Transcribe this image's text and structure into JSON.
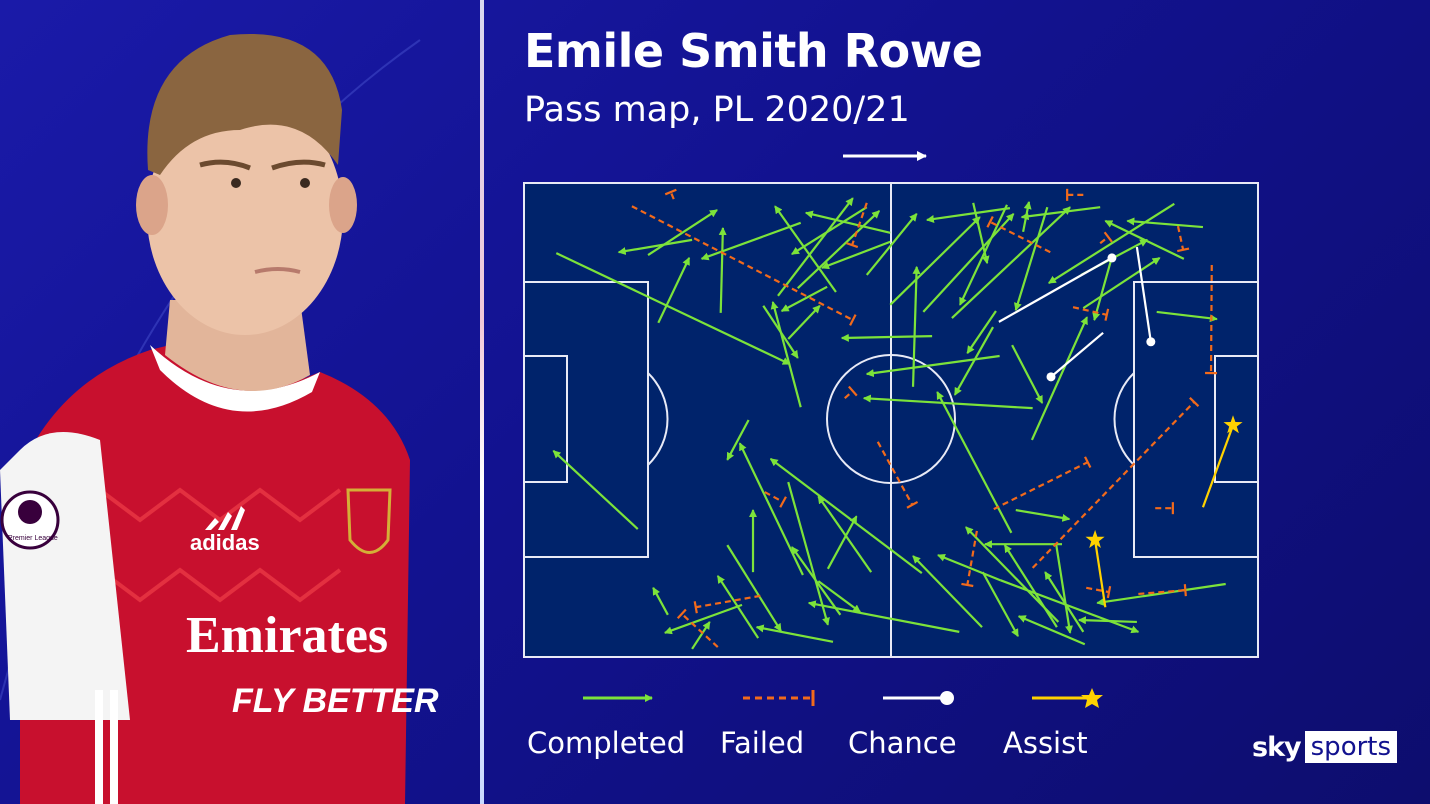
{
  "header": {
    "title": "Emile Smith Rowe",
    "subtitle": "Pass map, PL 2020/21"
  },
  "player_image": {
    "shirt_sponsor": "Emirates FLY BETTER",
    "kit_brand": "adidas",
    "badge": "Premier League",
    "club_crest": "Arsenal"
  },
  "branding": {
    "sky": "sky",
    "sports": "sports"
  },
  "colors": {
    "background": "#14149a",
    "pitch": "#00236b",
    "completed": "#7ce33a",
    "failed": "#f26a1b",
    "chance": "#ffffff",
    "assist": "#ffd200"
  },
  "legend": [
    {
      "key": "completed",
      "label": "Completed",
      "icon": "arrow-icon"
    },
    {
      "key": "failed",
      "label": "Failed",
      "icon": "dashed-blocked-line-icon"
    },
    {
      "key": "chance",
      "label": "Chance",
      "icon": "line-dot-icon"
    },
    {
      "key": "assist",
      "label": "Assist",
      "icon": "line-star-icon"
    }
  ],
  "chart_data": {
    "type": "pass-map",
    "title": "Emile Smith Rowe",
    "subtitle": "Pass map, PL 2020/21",
    "attacking_direction": "left-to-right",
    "xlim": [
      0,
      100
    ],
    "ylim": [
      0,
      100
    ],
    "grid": false,
    "legend_placement": "bottom",
    "passes": {
      "completed": [
        [
          4.4,
          14.8,
          36.2,
          38.2
        ],
        [
          18.3,
          29.5,
          22.5,
          15.8
        ],
        [
          26.8,
          27.4,
          27.1,
          9.5
        ],
        [
          22.9,
          12.0,
          12.9,
          14.6
        ],
        [
          16.9,
          15.2,
          26.3,
          5.7
        ],
        [
          37.7,
          8.4,
          24.2,
          16.0
        ],
        [
          42.5,
          23.0,
          34.2,
          4.9
        ],
        [
          34.6,
          23.8,
          44.8,
          3.2
        ],
        [
          37.3,
          22.2,
          48.4,
          5.9
        ],
        [
          49.9,
          10.5,
          38.4,
          6.3
        ],
        [
          46.7,
          5.1,
          36.5,
          15.0
        ],
        [
          49.9,
          12.4,
          40.6,
          17.9
        ],
        [
          41.3,
          21.9,
          35.1,
          27.0
        ],
        [
          32.6,
          25.9,
          37.3,
          36.9
        ],
        [
          37.7,
          47.3,
          33.9,
          25.1
        ],
        [
          36.0,
          32.9,
          40.3,
          25.9
        ],
        [
          55.6,
          32.3,
          43.3,
          32.7
        ],
        [
          64.8,
          36.5,
          46.7,
          40.3
        ],
        [
          69.3,
          47.5,
          46.3,
          45.4
        ],
        [
          53.0,
          43.0,
          53.5,
          17.7
        ],
        [
          46.7,
          19.4,
          53.5,
          6.5
        ],
        [
          49.9,
          25.7,
          62.1,
          7.2
        ],
        [
          54.4,
          27.2,
          66.7,
          6.5
        ],
        [
          58.3,
          28.5,
          74.4,
          5.1
        ],
        [
          66.2,
          5.3,
          54.9,
          7.8
        ],
        [
          61.2,
          4.2,
          63.1,
          16.9
        ],
        [
          65.8,
          4.6,
          59.4,
          25.7
        ],
        [
          71.3,
          5.1,
          67.0,
          26.8
        ],
        [
          78.5,
          5.1,
          67.8,
          7.2
        ],
        [
          68.0,
          10.3,
          68.8,
          4.0
        ],
        [
          92.5,
          9.3,
          82.2,
          8.0
        ],
        [
          88.6,
          4.4,
          71.5,
          21.1
        ],
        [
          89.9,
          16.0,
          79.2,
          8.0
        ],
        [
          75.9,
          19.4,
          84.9,
          12.0
        ],
        [
          76.2,
          26.4,
          86.6,
          15.8
        ],
        [
          80.1,
          15.6,
          77.7,
          28.9
        ],
        [
          86.2,
          27.2,
          94.4,
          28.7
        ],
        [
          64.3,
          27.0,
          60.4,
          35.9
        ],
        [
          63.9,
          30.4,
          58.7,
          44.7
        ],
        [
          66.5,
          34.2,
          70.6,
          46.4
        ],
        [
          69.2,
          54.2,
          76.7,
          28.3
        ],
        [
          66.4,
          73.8,
          56.3,
          44.1
        ],
        [
          15.5,
          73.0,
          4.0,
          56.5
        ],
        [
          30.6,
          50.0,
          27.7,
          58.4
        ],
        [
          31.2,
          82.1,
          31.2,
          69.0
        ],
        [
          38.0,
          82.7,
          29.4,
          54.9
        ],
        [
          54.2,
          82.3,
          33.6,
          58.2
        ],
        [
          36.0,
          63.1,
          41.4,
          93.2
        ],
        [
          47.3,
          82.1,
          40.1,
          66.1
        ],
        [
          41.4,
          81.4,
          45.3,
          70.3
        ],
        [
          43.1,
          91.1,
          36.5,
          76.8
        ],
        [
          40.1,
          84.0,
          45.8,
          90.5
        ],
        [
          59.3,
          94.7,
          38.8,
          88.6
        ],
        [
          19.6,
          91.1,
          17.6,
          85.4
        ],
        [
          29.7,
          89.0,
          19.2,
          94.9
        ],
        [
          22.9,
          98.3,
          25.3,
          92.6
        ],
        [
          31.9,
          96.0,
          26.4,
          82.9
        ],
        [
          27.7,
          76.4,
          35.0,
          94.5
        ],
        [
          42.1,
          96.8,
          31.7,
          93.7
        ],
        [
          67.0,
          69.0,
          74.3,
          70.9
        ],
        [
          62.4,
          93.7,
          53.0,
          78.7
        ],
        [
          73.3,
          76.2,
          62.8,
          76.2
        ],
        [
          72.5,
          76.2,
          74.4,
          94.9
        ],
        [
          72.8,
          92.6,
          60.2,
          72.6
        ],
        [
          76.2,
          94.7,
          71.0,
          82.1
        ],
        [
          62.5,
          82.1,
          67.3,
          95.6
        ],
        [
          72.6,
          93.7,
          65.5,
          76.4
        ],
        [
          76.4,
          97.3,
          67.4,
          91.4
        ],
        [
          83.5,
          92.6,
          75.6,
          92.2
        ],
        [
          64.9,
          83.8,
          56.4,
          78.5
        ],
        [
          64.9,
          83.8,
          83.7,
          94.7
        ],
        [
          95.6,
          84.6,
          78.1,
          88.6
        ]
      ],
      "failed": [
        [
          14.7,
          4.9,
          44.8,
          28.9
        ],
        [
          20.4,
          3.4,
          20.0,
          1.9
        ],
        [
          46.7,
          4.2,
          44.7,
          13.1
        ],
        [
          43.7,
          45.4,
          44.8,
          43.9
        ],
        [
          71.7,
          14.6,
          63.5,
          8.2
        ],
        [
          76.2,
          2.5,
          74.0,
          2.5
        ],
        [
          78.5,
          12.7,
          79.6,
          11.4
        ],
        [
          89.1,
          9.1,
          89.8,
          14.1
        ],
        [
          74.8,
          26.2,
          79.4,
          27.8
        ],
        [
          93.7,
          17.3,
          93.6,
          40.1
        ],
        [
          69.3,
          81.2,
          91.3,
          46.2
        ],
        [
          64.0,
          68.8,
          76.8,
          58.9
        ],
        [
          48.2,
          54.6,
          52.9,
          67.9
        ],
        [
          86.0,
          68.6,
          88.4,
          68.6
        ],
        [
          61.7,
          73.4,
          60.4,
          84.8
        ],
        [
          76.6,
          85.4,
          79.7,
          86.3
        ],
        [
          83.7,
          86.7,
          90.1,
          85.9
        ],
        [
          32.8,
          65.2,
          35.3,
          67.3
        ],
        [
          32.2,
          87.1,
          23.4,
          89.5
        ],
        [
          26.4,
          97.9,
          21.5,
          90.9
        ]
      ],
      "chance": [
        [
          64.7,
          29.3,
          80.1,
          15.8
        ],
        [
          83.5,
          13.5,
          85.4,
          33.5
        ],
        [
          78.9,
          31.6,
          71.8,
          40.9
        ]
      ],
      "assist": [
        [
          92.5,
          68.4,
          96.6,
          51.1
        ],
        [
          79.2,
          89.5,
          77.8,
          75.3
        ]
      ]
    }
  }
}
